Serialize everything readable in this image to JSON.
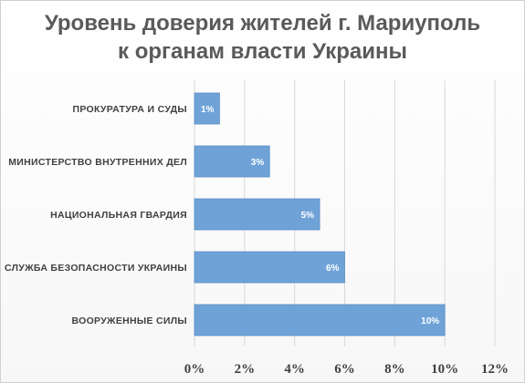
{
  "chart_data": {
    "type": "bar",
    "orientation": "horizontal",
    "title_line1": "Уровень доверия жителей г. Мариуполь",
    "title_line2": "к органам власти Украины",
    "categories": [
      "ПРОКУРАТУРА И СУДЫ",
      "МИНИСТЕРСТВО ВНУТРЕННИХ ДЕЛ",
      "НАЦИОНАЛЬНАЯ ГВАРДИЯ",
      "СЛУЖБА БЕЗОПАСНОСТИ УКРАИНЫ",
      "ВООРУЖЕННЫЕ СИЛЫ"
    ],
    "values": [
      1,
      3,
      5,
      6,
      10
    ],
    "data_labels": [
      "1%",
      "3%",
      "5%",
      "6%",
      "10%"
    ],
    "x_ticks": [
      "0%",
      "2%",
      "4%",
      "6%",
      "8%",
      "10%",
      "12%"
    ],
    "xlim": [
      0,
      12
    ],
    "grid": true,
    "legend": false,
    "bar_color": "#6fa3d8",
    "bar_border_color": "#5b8ec4",
    "grid_color": "#d9d9d9"
  }
}
